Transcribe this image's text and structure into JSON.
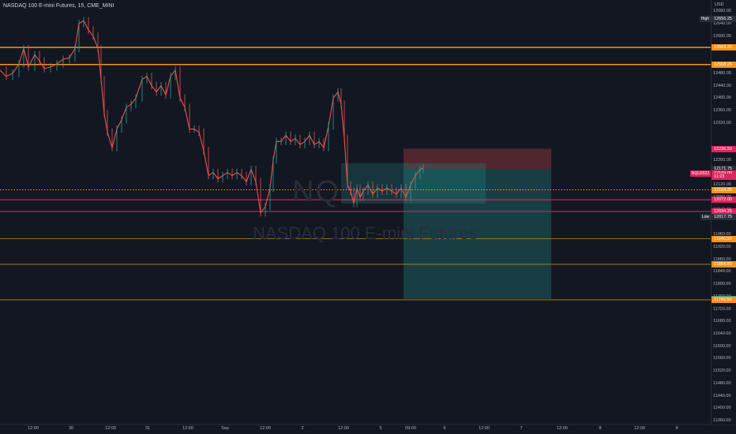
{
  "header": {
    "symbol_line": "NASDAQ 100 E-mini Futures, 15, CME_MINI"
  },
  "watermark": {
    "ticker": "NQ",
    "name": "NASDAQ 100 E-mini Futures"
  },
  "axis": {
    "currency": "USD",
    "price_labels": [
      "12680.00",
      "12640.00",
      "12600.00",
      "12480.00",
      "12440.00",
      "12400.00",
      "12360.00",
      "12320.00",
      "12120.00",
      "12080.00",
      "12040.00",
      "11960.00",
      "11920.00",
      "11880.00",
      "11840.00",
      "11800.00",
      "11760.00",
      "11720.00",
      "11680.00",
      "11640.00",
      "11600.00",
      "11560.00",
      "11520.00",
      "11480.00",
      "11440.00",
      "11400.00",
      "11360.00",
      "12200.00"
    ],
    "time_labels": [
      "12:00",
      "30",
      "12:00",
      "31",
      "12:00",
      "Sep",
      "12:00",
      "2",
      "12:00",
      "5",
      "09:00",
      "6",
      "12:00",
      "7",
      "12:00",
      "8",
      "12:00",
      "9"
    ]
  },
  "price_tags": [
    {
      "label": "12656.25",
      "side": "High",
      "bg": "#2a2e39",
      "price": 12656.25
    },
    {
      "label": "12563.25",
      "bg": "#f7931a",
      "price": 12563.25
    },
    {
      "label": "12508.25",
      "bg": "#f7931a",
      "price": 12508.25
    },
    {
      "label": "12236.50",
      "bg": "#e0245e",
      "price": 12236.5
    },
    {
      "label": "12171.75",
      "bg": "#2a2e39",
      "price": 12171.75
    },
    {
      "label": "12169.00",
      "side": "NQU2022",
      "bg": "#e0245e",
      "price": 12157
    },
    {
      "label": "11:23",
      "bg": "#e0245e",
      "price": 12147
    },
    {
      "label": "12104.25",
      "bg": "#f7931a",
      "price": 12104.25
    },
    {
      "label": "12072.00",
      "bg": "#e0245e",
      "price": 12072
    },
    {
      "label": "12034.25",
      "bg": "#e0245e",
      "price": 12034.25
    },
    {
      "label": "12017.75",
      "side": "Low",
      "bg": "#2a2e39",
      "price": 12017.75
    },
    {
      "label": "11946.50",
      "bg": "#f7931a",
      "price": 11946.5
    },
    {
      "label": "11864.00",
      "bg": "#f7931a",
      "price": 11864
    },
    {
      "label": "11752.75",
      "bg": "#26a69a",
      "price": 11752.75
    },
    {
      "label": "11749.50",
      "bg": "#f7931a",
      "price": 11749.5
    }
  ],
  "levels": [
    {
      "price": 12563.25,
      "color": "#f7931a",
      "style": "solid",
      "width": 1.5
    },
    {
      "price": 12508.25,
      "color": "#f7931a",
      "style": "solid",
      "width": 1.5
    },
    {
      "price": 12104.25,
      "color": "#f7931a",
      "style": "dotted",
      "width": 1
    },
    {
      "price": 12072.0,
      "color": "#e0245e",
      "style": "solid",
      "width": 1.2
    },
    {
      "price": 12034.25,
      "color": "#e0245e",
      "style": "solid",
      "width": 1
    },
    {
      "price": 11946.5,
      "color": "#b8862b",
      "style": "solid",
      "width": 0.8
    },
    {
      "price": 11864.0,
      "color": "#b8862b",
      "style": "solid",
      "width": 0.8
    },
    {
      "price": 11749.5,
      "color": "#b8862b",
      "style": "solid",
      "width": 0.8
    }
  ],
  "position": {
    "entry": 12171.75,
    "stop": 12236.5,
    "target": 11752.75
  },
  "colors": {
    "up": "#26a69a",
    "down": "#ef5350",
    "accent": "#f7931a"
  }
}
